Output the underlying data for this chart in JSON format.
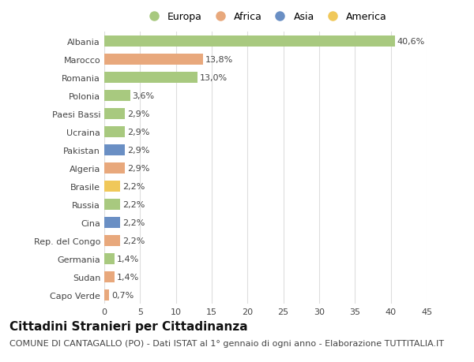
{
  "countries": [
    "Albania",
    "Marocco",
    "Romania",
    "Polonia",
    "Paesi Bassi",
    "Ucraina",
    "Pakistan",
    "Algeria",
    "Brasile",
    "Russia",
    "Cina",
    "Rep. del Congo",
    "Germania",
    "Sudan",
    "Capo Verde"
  ],
  "values": [
    40.6,
    13.8,
    13.0,
    3.6,
    2.9,
    2.9,
    2.9,
    2.9,
    2.2,
    2.2,
    2.2,
    2.2,
    1.4,
    1.4,
    0.7
  ],
  "labels": [
    "40,6%",
    "13,8%",
    "13,0%",
    "3,6%",
    "2,9%",
    "2,9%",
    "2,9%",
    "2,9%",
    "2,2%",
    "2,2%",
    "2,2%",
    "2,2%",
    "1,4%",
    "1,4%",
    "0,7%"
  ],
  "continents": [
    "Europa",
    "Africa",
    "Europa",
    "Europa",
    "Europa",
    "Europa",
    "Asia",
    "Africa",
    "America",
    "Europa",
    "Asia",
    "Africa",
    "Europa",
    "Africa",
    "Africa"
  ],
  "continent_colors": {
    "Europa": "#a8c97f",
    "Africa": "#e8a87c",
    "Asia": "#6a8fc4",
    "America": "#f0c85a"
  },
  "legend_order": [
    "Europa",
    "Africa",
    "Asia",
    "America"
  ],
  "bg_color": "#ffffff",
  "grid_color": "#dddddd",
  "bar_height": 0.6,
  "xlim": [
    0,
    45
  ],
  "xticks": [
    0,
    5,
    10,
    15,
    20,
    25,
    30,
    35,
    40,
    45
  ],
  "title": "Cittadini Stranieri per Cittadinanza",
  "subtitle": "COMUNE DI CANTAGALLO (PO) - Dati ISTAT al 1° gennaio di ogni anno - Elaborazione TUTTITALIA.IT",
  "title_fontsize": 11,
  "subtitle_fontsize": 8,
  "label_fontsize": 8,
  "tick_fontsize": 8,
  "legend_fontsize": 9
}
